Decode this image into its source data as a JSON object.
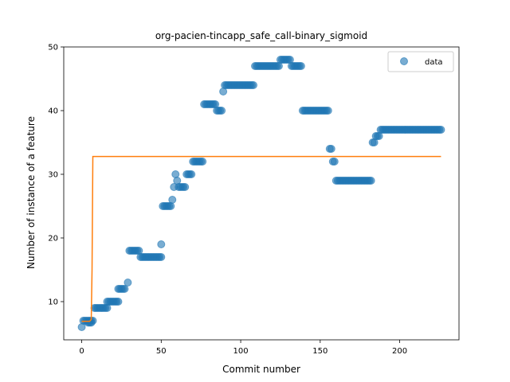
{
  "chart_data": {
    "type": "scatter",
    "title": "org-pacien-tincapp_safe_call-binary_sigmoid",
    "xlabel": "Commit number",
    "ylabel": "Number of instance of a feature",
    "xlim": [
      -11.3,
      237.3
    ],
    "ylim": [
      4.0,
      50.0
    ],
    "xticks": [
      0,
      50,
      100,
      150,
      200
    ],
    "yticks": [
      10,
      20,
      30,
      40,
      50
    ],
    "grid": false,
    "legend": {
      "position": "top-right",
      "entries": [
        "data"
      ]
    },
    "colors": {
      "data": "#1f77b4",
      "fit": "#ff7f0e"
    },
    "series": [
      {
        "name": "data",
        "marker": "circle",
        "alpha": 0.6,
        "segments": [
          {
            "x0": 0,
            "x1": 0,
            "y": 6
          },
          {
            "x0": 1,
            "x1": 7,
            "y": 7
          },
          {
            "x0": 4,
            "x1": 6,
            "y": 6.7
          },
          {
            "x0": 8,
            "x1": 16,
            "y": 9
          },
          {
            "x0": 16,
            "x1": 23,
            "y": 10
          },
          {
            "x0": 23,
            "x1": 27,
            "y": 12
          },
          {
            "x0": 29,
            "x1": 29,
            "y": 13
          },
          {
            "x0": 30,
            "x1": 36,
            "y": 18
          },
          {
            "x0": 37,
            "x1": 50,
            "y": 17
          },
          {
            "x0": 50,
            "x1": 50,
            "y": 19
          },
          {
            "x0": 51,
            "x1": 56,
            "y": 25
          },
          {
            "x0": 57,
            "x1": 57,
            "y": 26
          },
          {
            "x0": 58,
            "x1": 58,
            "y": 28
          },
          {
            "x0": 59,
            "x1": 59,
            "y": 30
          },
          {
            "x0": 60,
            "x1": 60,
            "y": 29
          },
          {
            "x0": 61,
            "x1": 65,
            "y": 28
          },
          {
            "x0": 66,
            "x1": 69,
            "y": 30
          },
          {
            "x0": 70,
            "x1": 76,
            "y": 32
          },
          {
            "x0": 77,
            "x1": 84,
            "y": 41
          },
          {
            "x0": 85,
            "x1": 88,
            "y": 40
          },
          {
            "x0": 89,
            "x1": 89,
            "y": 43
          },
          {
            "x0": 90,
            "x1": 108,
            "y": 44
          },
          {
            "x0": 109,
            "x1": 124,
            "y": 47
          },
          {
            "x0": 125,
            "x1": 131,
            "y": 48
          },
          {
            "x0": 132,
            "x1": 138,
            "y": 47
          },
          {
            "x0": 139,
            "x1": 155,
            "y": 40
          },
          {
            "x0": 156,
            "x1": 157,
            "y": 34
          },
          {
            "x0": 158,
            "x1": 159,
            "y": 32
          },
          {
            "x0": 160,
            "x1": 182,
            "y": 29
          },
          {
            "x0": 183,
            "x1": 184,
            "y": 35
          },
          {
            "x0": 185,
            "x1": 187,
            "y": 36
          },
          {
            "x0": 188,
            "x1": 226,
            "y": 37
          }
        ]
      },
      {
        "name": "",
        "line": true,
        "x": [
          0,
          5,
          6,
          6.5,
          7,
          8,
          226
        ],
        "y": [
          6.9,
          6.9,
          7.2,
          15.0,
          32.8,
          32.8,
          32.8
        ]
      }
    ]
  }
}
